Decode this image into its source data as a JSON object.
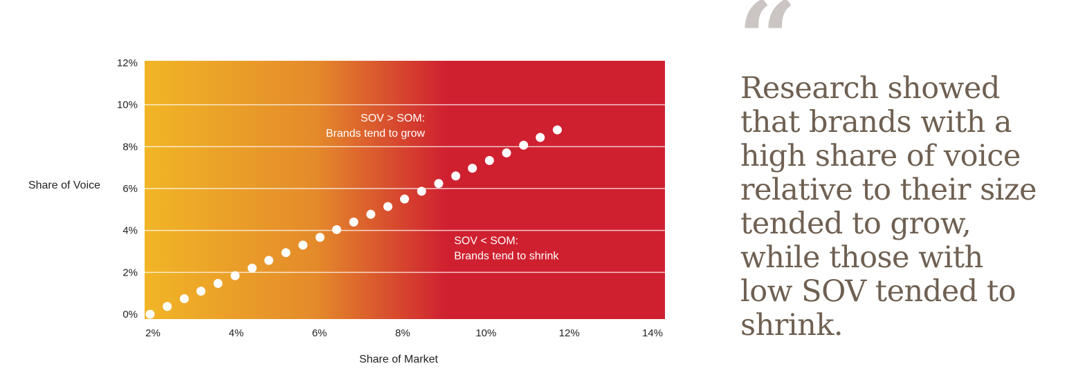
{
  "chart_data": {
    "type": "scatter",
    "title": "",
    "xlabel": "Share of Market",
    "ylabel": "Share of Voice",
    "xlim": [
      2,
      14
    ],
    "ylim": [
      0,
      12
    ],
    "x_ticks": [
      "2%",
      "4%",
      "6%",
      "8%",
      "10%",
      "12%",
      "14%"
    ],
    "x_tick_values": [
      2,
      4,
      6,
      8,
      10,
      12,
      14
    ],
    "y_ticks": [
      "0%",
      "2%",
      "4%",
      "6%",
      "8%",
      "10%",
      "12%"
    ],
    "y_tick_values": [
      0,
      2,
      4,
      6,
      8,
      10,
      12
    ],
    "gridlines": true,
    "background_gradient": [
      "#f1b526",
      "#e48a2b",
      "#cf2030"
    ],
    "point_color": "#ffffff",
    "series": [
      {
        "name": "Brands",
        "x": [
          2,
          2.41,
          2.82,
          3.22,
          3.63,
          4.04,
          4.45,
          4.85,
          5.26,
          5.67,
          6.08,
          6.48,
          6.89,
          7.3,
          7.71,
          8.11,
          8.52,
          8.93,
          9.34,
          9.74,
          10.15,
          10.56,
          10.97,
          11.37,
          11.78
        ],
        "y": [
          0,
          0.37,
          0.74,
          1.1,
          1.47,
          1.84,
          2.2,
          2.57,
          2.94,
          3.3,
          3.67,
          4.04,
          4.4,
          4.77,
          5.14,
          5.5,
          5.87,
          6.24,
          6.6,
          6.97,
          7.34,
          7.7,
          8.07,
          8.44,
          8.8
        ]
      }
    ],
    "annotations": [
      {
        "lines": [
          "SOV > SOM:",
          "Brands tend to grow"
        ],
        "x": 8.6,
        "y": 9.2
      },
      {
        "lines": [
          "SOV < SOM:",
          "Brands tend to shrink"
        ],
        "x": 9.3,
        "y": 3.35
      }
    ]
  },
  "quote": {
    "mark": "“",
    "lines": [
      "Research showed",
      "that brands with a",
      "high share of voice",
      "relative to their size",
      "tended to grow,",
      "while those with",
      "low SOV tended to",
      "shrink."
    ],
    "color": "#6f6052"
  }
}
